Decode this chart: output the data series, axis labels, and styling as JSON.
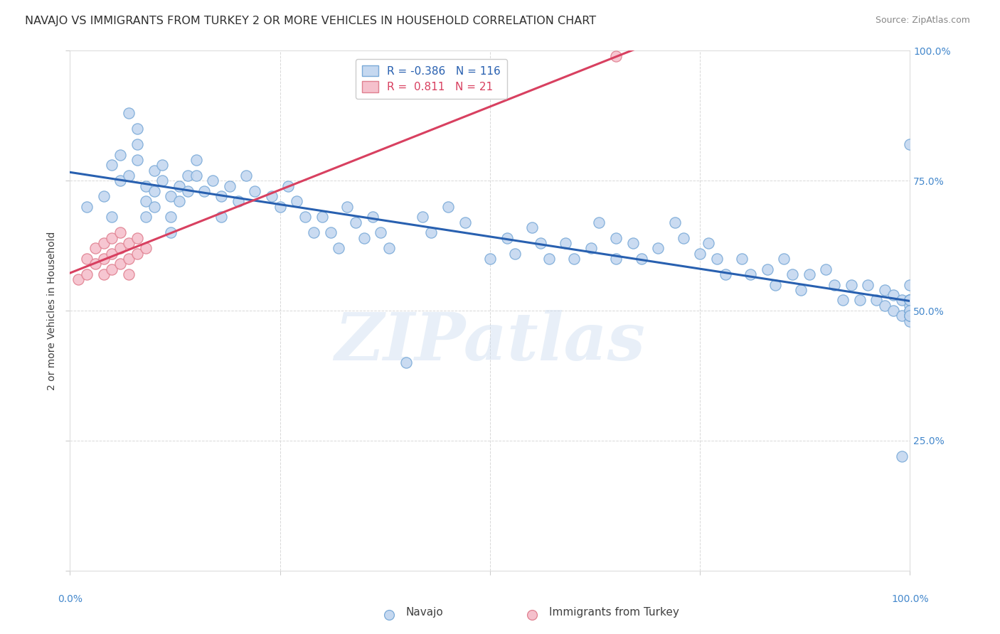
{
  "title": "NAVAJO VS IMMIGRANTS FROM TURKEY 2 OR MORE VEHICLES IN HOUSEHOLD CORRELATION CHART",
  "source": "Source: ZipAtlas.com",
  "ylabel": "2 or more Vehicles in Household",
  "background_color": "#ffffff",
  "plot_bg_color": "#ffffff",
  "grid_color": "#d8d8d8",
  "navajo_color": "#c5d8f0",
  "turkey_color": "#f5c0cc",
  "navajo_edge_color": "#7aaad8",
  "turkey_edge_color": "#e08090",
  "navajo_line_color": "#2860b0",
  "turkey_line_color": "#d84060",
  "r_navajo": -0.386,
  "n_navajo": 116,
  "r_turkey": 0.811,
  "n_turkey": 21,
  "xlim": [
    0,
    1
  ],
  "ylim": [
    0,
    1
  ],
  "watermark": "ZIPatlas",
  "navajo_x": [
    0.02,
    0.04,
    0.05,
    0.05,
    0.06,
    0.06,
    0.07,
    0.07,
    0.08,
    0.08,
    0.08,
    0.09,
    0.09,
    0.09,
    0.1,
    0.1,
    0.1,
    0.11,
    0.11,
    0.12,
    0.12,
    0.12,
    0.13,
    0.13,
    0.14,
    0.14,
    0.15,
    0.15,
    0.16,
    0.17,
    0.18,
    0.18,
    0.19,
    0.2,
    0.21,
    0.22,
    0.24,
    0.25,
    0.26,
    0.27,
    0.28,
    0.29,
    0.3,
    0.31,
    0.32,
    0.33,
    0.34,
    0.35,
    0.36,
    0.37,
    0.38,
    0.4,
    0.42,
    0.43,
    0.45,
    0.47,
    0.5,
    0.52,
    0.53,
    0.55,
    0.56,
    0.57,
    0.59,
    0.6,
    0.62,
    0.63,
    0.65,
    0.65,
    0.67,
    0.68,
    0.7,
    0.72,
    0.73,
    0.75,
    0.76,
    0.77,
    0.78,
    0.8,
    0.81,
    0.83,
    0.84,
    0.85,
    0.86,
    0.87,
    0.88,
    0.9,
    0.91,
    0.92,
    0.93,
    0.94,
    0.95,
    0.96,
    0.97,
    0.97,
    0.98,
    0.98,
    0.99,
    0.99,
    0.99,
    1.0,
    1.0,
    1.0,
    1.0,
    1.0,
    1.0,
    1.0,
    1.0,
    1.0,
    1.0,
    1.0,
    1.0,
    1.0,
    1.0,
    1.0,
    1.0,
    1.0
  ],
  "navajo_y": [
    0.7,
    0.72,
    0.68,
    0.78,
    0.75,
    0.8,
    0.88,
    0.76,
    0.85,
    0.82,
    0.79,
    0.74,
    0.71,
    0.68,
    0.77,
    0.73,
    0.7,
    0.78,
    0.75,
    0.72,
    0.68,
    0.65,
    0.74,
    0.71,
    0.76,
    0.73,
    0.79,
    0.76,
    0.73,
    0.75,
    0.72,
    0.68,
    0.74,
    0.71,
    0.76,
    0.73,
    0.72,
    0.7,
    0.74,
    0.71,
    0.68,
    0.65,
    0.68,
    0.65,
    0.62,
    0.7,
    0.67,
    0.64,
    0.68,
    0.65,
    0.62,
    0.4,
    0.68,
    0.65,
    0.7,
    0.67,
    0.6,
    0.64,
    0.61,
    0.66,
    0.63,
    0.6,
    0.63,
    0.6,
    0.62,
    0.67,
    0.64,
    0.6,
    0.63,
    0.6,
    0.62,
    0.67,
    0.64,
    0.61,
    0.63,
    0.6,
    0.57,
    0.6,
    0.57,
    0.58,
    0.55,
    0.6,
    0.57,
    0.54,
    0.57,
    0.58,
    0.55,
    0.52,
    0.55,
    0.52,
    0.55,
    0.52,
    0.54,
    0.51,
    0.53,
    0.5,
    0.52,
    0.49,
    0.22,
    0.55,
    0.52,
    0.49,
    0.52,
    0.49,
    0.52,
    0.5,
    0.49,
    0.52,
    0.5,
    0.48,
    0.51,
    0.49,
    0.52,
    0.5,
    0.49,
    0.82
  ],
  "turkey_x": [
    0.01,
    0.02,
    0.02,
    0.03,
    0.03,
    0.04,
    0.04,
    0.04,
    0.05,
    0.05,
    0.05,
    0.06,
    0.06,
    0.06,
    0.07,
    0.07,
    0.07,
    0.08,
    0.08,
    0.09,
    0.65
  ],
  "turkey_y": [
    0.56,
    0.6,
    0.57,
    0.62,
    0.59,
    0.63,
    0.6,
    0.57,
    0.64,
    0.61,
    0.58,
    0.65,
    0.62,
    0.59,
    0.63,
    0.6,
    0.57,
    0.64,
    0.61,
    0.62,
    0.99
  ],
  "legend_navajo_label": "Navajo",
  "legend_turkey_label": "Immigrants from Turkey",
  "title_fontsize": 11.5,
  "axis_fontsize": 10,
  "tick_fontsize": 10,
  "legend_fontsize": 11,
  "title_color": "#303030",
  "axis_label_color": "#404040",
  "tick_color": "#4488cc",
  "right_tick_color": "#4488cc"
}
